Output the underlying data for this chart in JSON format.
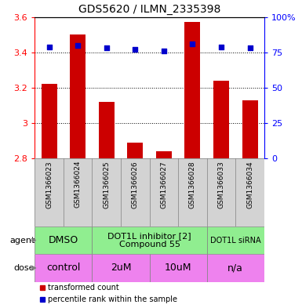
{
  "title": "GDS5620 / ILMN_2335398",
  "samples": [
    "GSM1366023",
    "GSM1366024",
    "GSM1366025",
    "GSM1366026",
    "GSM1366027",
    "GSM1366028",
    "GSM1366033",
    "GSM1366034"
  ],
  "bar_values": [
    3.22,
    3.5,
    3.12,
    2.89,
    2.84,
    3.57,
    3.24,
    3.13
  ],
  "dot_values": [
    79,
    80,
    78,
    77,
    76,
    81,
    79,
    78
  ],
  "bar_color": "#cc0000",
  "dot_color": "#0000cc",
  "ylim_left": [
    2.8,
    3.6
  ],
  "ylim_right": [
    0,
    100
  ],
  "yticks_left": [
    2.8,
    3.0,
    3.2,
    3.4,
    3.6
  ],
  "yticks_right": [
    0,
    25,
    50,
    75,
    100
  ],
  "ytick_labels_left": [
    "2.8",
    "3",
    "3.2",
    "3.4",
    "3.6"
  ],
  "ytick_labels_right": [
    "0",
    "25",
    "50",
    "75",
    "100%"
  ],
  "agent_groups": [
    {
      "label": "DMSO",
      "start": 0,
      "end": 2,
      "color": "#90ee90",
      "fontsize": 9
    },
    {
      "label": "DOT1L inhibitor [2]\nCompound 55",
      "start": 2,
      "end": 6,
      "color": "#90ee90",
      "fontsize": 8
    },
    {
      "label": "DOT1L siRNA",
      "start": 6,
      "end": 8,
      "color": "#90ee90",
      "fontsize": 7
    }
  ],
  "dose_groups": [
    {
      "label": "control",
      "start": 0,
      "end": 2,
      "color": "#ee82ee",
      "fontsize": 9
    },
    {
      "label": "2uM",
      "start": 2,
      "end": 4,
      "color": "#ee82ee",
      "fontsize": 9
    },
    {
      "label": "10uM",
      "start": 4,
      "end": 6,
      "color": "#ee82ee",
      "fontsize": 9
    },
    {
      "label": "n/a",
      "start": 6,
      "end": 8,
      "color": "#ee82ee",
      "fontsize": 9
    }
  ],
  "legend_items": [
    {
      "color": "#cc0000",
      "label": "transformed count"
    },
    {
      "color": "#0000cc",
      "label": "percentile rank within the sample"
    }
  ],
  "background_color": "#ffffff",
  "bar_width": 0.55,
  "sample_bg_color": "#d3d3d3",
  "sample_fontsize": 6.5,
  "title_fontsize": 10,
  "left_tick_color": "red",
  "right_tick_color": "blue"
}
